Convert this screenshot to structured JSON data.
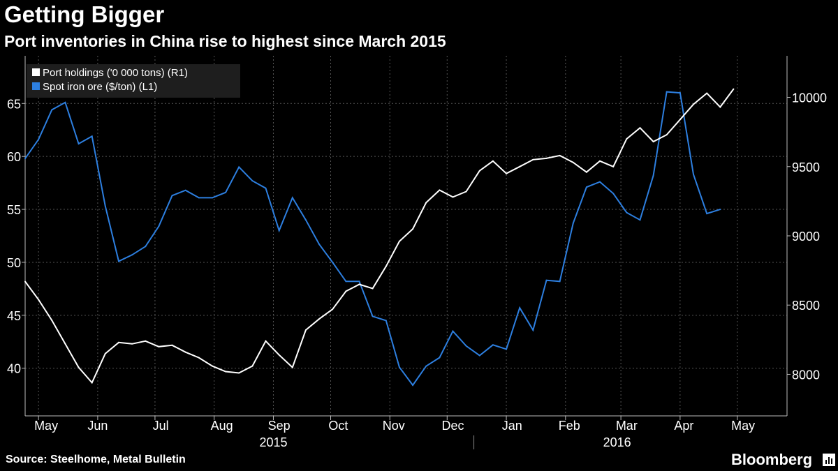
{
  "title": "Getting Bigger",
  "subtitle": "Port inventories in China rise to highest since March 2015",
  "source": "Source: Steelhome, Metal Bulletin",
  "brand": "Bloomberg",
  "colors": {
    "background": "#000000",
    "port": "#ffffff",
    "ore": "#2d7fe0",
    "grid": "#555555"
  },
  "chart_data": {
    "type": "line",
    "legend": {
      "position": "top-left",
      "entries": [
        "Port holdings ('0 000 tons) (R1)",
        "Spot iron ore ($/ton) (L1)"
      ]
    },
    "left_axis": {
      "range": [
        35.5,
        69.5
      ],
      "ticks": [
        "40",
        "45",
        "50",
        "55",
        "60",
        "65"
      ]
    },
    "right_axis": {
      "range": [
        7700,
        10300
      ],
      "ticks": [
        "8000",
        "8500",
        "9000",
        "9500",
        "10000"
      ]
    },
    "x_axis": {
      "range": [
        "2015-04-24",
        "2016-05-27"
      ],
      "month_labels": [
        {
          "label": "May",
          "date": "2015-05-05"
        },
        {
          "label": "Jun",
          "date": "2015-06-01"
        },
        {
          "label": "Jul",
          "date": "2015-07-04"
        },
        {
          "label": "Aug",
          "date": "2015-08-05"
        },
        {
          "label": "Sep",
          "date": "2015-09-04"
        },
        {
          "label": "Oct",
          "date": "2015-10-05"
        },
        {
          "label": "Nov",
          "date": "2015-11-03"
        },
        {
          "label": "Dec",
          "date": "2015-12-04"
        },
        {
          "label": "Jan",
          "date": "2016-01-04"
        },
        {
          "label": "Feb",
          "date": "2016-02-03"
        },
        {
          "label": "Mar",
          "date": "2016-03-04"
        },
        {
          "label": "Apr",
          "date": "2016-04-03"
        },
        {
          "label": "May",
          "date": "2016-05-04"
        }
      ],
      "year_labels": [
        {
          "label": "2015",
          "date": "2015-09-01"
        },
        {
          "label": "2016",
          "date": "2016-02-28"
        }
      ]
    },
    "series": [
      {
        "name": "Port holdings ('0 000 tons) (R1)",
        "axis": "right",
        "color": "#ffffff",
        "points": [
          [
            "2015-04-24",
            8670
          ],
          [
            "2015-05-01",
            8540
          ],
          [
            "2015-05-08",
            8390
          ],
          [
            "2015-05-15",
            8220
          ],
          [
            "2015-05-22",
            8050
          ],
          [
            "2015-05-29",
            7940
          ],
          [
            "2015-06-05",
            8150
          ],
          [
            "2015-06-12",
            8230
          ],
          [
            "2015-06-19",
            8220
          ],
          [
            "2015-06-26",
            8240
          ],
          [
            "2015-07-03",
            8200
          ],
          [
            "2015-07-10",
            8210
          ],
          [
            "2015-07-17",
            8160
          ],
          [
            "2015-07-24",
            8120
          ],
          [
            "2015-07-31",
            8060
          ],
          [
            "2015-08-07",
            8020
          ],
          [
            "2015-08-14",
            8010
          ],
          [
            "2015-08-21",
            8060
          ],
          [
            "2015-08-28",
            8240
          ],
          [
            "2015-09-04",
            8140
          ],
          [
            "2015-09-11",
            8050
          ],
          [
            "2015-09-18",
            8320
          ],
          [
            "2015-09-25",
            8400
          ],
          [
            "2015-10-02",
            8470
          ],
          [
            "2015-10-09",
            8600
          ],
          [
            "2015-10-16",
            8650
          ],
          [
            "2015-10-23",
            8620
          ],
          [
            "2015-10-30",
            8780
          ],
          [
            "2015-11-06",
            8960
          ],
          [
            "2015-11-13",
            9050
          ],
          [
            "2015-11-20",
            9240
          ],
          [
            "2015-11-27",
            9330
          ],
          [
            "2015-12-04",
            9280
          ],
          [
            "2015-12-11",
            9320
          ],
          [
            "2015-12-18",
            9470
          ],
          [
            "2015-12-25",
            9540
          ],
          [
            "2016-01-01",
            9450
          ],
          [
            "2016-01-08",
            9500
          ],
          [
            "2016-01-15",
            9550
          ],
          [
            "2016-01-22",
            9560
          ],
          [
            "2016-01-29",
            9580
          ],
          [
            "2016-02-05",
            9530
          ],
          [
            "2016-02-12",
            9460
          ],
          [
            "2016-02-19",
            9540
          ],
          [
            "2016-02-26",
            9500
          ],
          [
            "2016-03-04",
            9700
          ],
          [
            "2016-03-11",
            9780
          ],
          [
            "2016-03-18",
            9680
          ],
          [
            "2016-03-25",
            9730
          ],
          [
            "2016-04-01",
            9840
          ],
          [
            "2016-04-08",
            9950
          ],
          [
            "2016-04-15",
            10030
          ],
          [
            "2016-04-22",
            9930
          ],
          [
            "2016-04-29",
            10060
          ]
        ]
      },
      {
        "name": "Spot iron ore ($/ton) (L1)",
        "axis": "left",
        "color": "#2d7fe0",
        "points": [
          [
            "2015-04-24",
            59.8
          ],
          [
            "2015-05-01",
            61.6
          ],
          [
            "2015-05-08",
            64.4
          ],
          [
            "2015-05-15",
            65.1
          ],
          [
            "2015-05-22",
            61.2
          ],
          [
            "2015-05-29",
            61.9
          ],
          [
            "2015-06-05",
            55.3
          ],
          [
            "2015-06-12",
            50.1
          ],
          [
            "2015-06-19",
            50.7
          ],
          [
            "2015-06-26",
            51.5
          ],
          [
            "2015-07-03",
            53.4
          ],
          [
            "2015-07-10",
            56.3
          ],
          [
            "2015-07-17",
            56.8
          ],
          [
            "2015-07-24",
            56.1
          ],
          [
            "2015-07-31",
            56.1
          ],
          [
            "2015-08-07",
            56.6
          ],
          [
            "2015-08-14",
            59.0
          ],
          [
            "2015-08-21",
            57.7
          ],
          [
            "2015-08-28",
            57.0
          ],
          [
            "2015-09-04",
            53.0
          ],
          [
            "2015-09-11",
            56.1
          ],
          [
            "2015-09-18",
            54.0
          ],
          [
            "2015-09-25",
            51.7
          ],
          [
            "2015-10-02",
            50.0
          ],
          [
            "2015-10-09",
            48.2
          ],
          [
            "2015-10-16",
            48.2
          ],
          [
            "2015-10-23",
            44.9
          ],
          [
            "2015-10-30",
            44.5
          ],
          [
            "2015-11-06",
            40.1
          ],
          [
            "2015-11-13",
            38.4
          ],
          [
            "2015-11-20",
            40.2
          ],
          [
            "2015-11-27",
            41.0
          ],
          [
            "2015-12-04",
            43.5
          ],
          [
            "2015-12-11",
            42.1
          ],
          [
            "2015-12-18",
            41.2
          ],
          [
            "2015-12-25",
            42.2
          ],
          [
            "2016-01-01",
            41.8
          ],
          [
            "2016-01-08",
            45.7
          ],
          [
            "2016-01-15",
            43.6
          ],
          [
            "2016-01-22",
            48.3
          ],
          [
            "2016-01-29",
            48.2
          ],
          [
            "2016-02-05",
            53.7
          ],
          [
            "2016-02-12",
            57.1
          ],
          [
            "2016-02-19",
            57.6
          ],
          [
            "2016-02-26",
            56.5
          ],
          [
            "2016-03-04",
            54.7
          ],
          [
            "2016-03-11",
            54.0
          ],
          [
            "2016-03-18",
            58.2
          ],
          [
            "2016-03-25",
            66.1
          ],
          [
            "2016-04-01",
            66.0
          ],
          [
            "2016-04-08",
            58.3
          ],
          [
            "2016-04-15",
            54.6
          ],
          [
            "2016-04-22",
            55.0
          ]
        ]
      }
    ]
  }
}
